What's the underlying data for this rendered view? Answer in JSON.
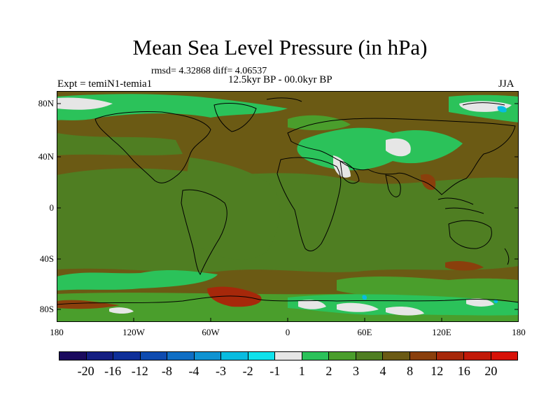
{
  "title": "Mean Sea Level Pressure (in hPa)",
  "stats": "rmsd= 4.32868 diff= 4.06537",
  "period": "12.5kyr BP - 00.0kyr BP",
  "experiment": "Expt = temiN1-temia1",
  "season": "JJA",
  "lat_ticks": [
    "80N",
    "40N",
    "0",
    "40S",
    "80S"
  ],
  "lon_ticks": [
    "180",
    "120W",
    "60W",
    "0",
    "60E",
    "120E",
    "180"
  ],
  "colorbar": {
    "labels": [
      "-20",
      "-16",
      "-12",
      "-8",
      "-4",
      "-3",
      "-2",
      "-1",
      "1",
      "2",
      "3",
      "4",
      "8",
      "12",
      "16",
      "20"
    ],
    "colors": [
      "#1b0a5e",
      "#141e82",
      "#0e2f99",
      "#0e4bb0",
      "#0f6ec4",
      "#0f93d2",
      "#08bce0",
      "#0fe2ec",
      "#e6e6e6",
      "#2bc25a",
      "#4a9e2c",
      "#4f7e22",
      "#6b5a14",
      "#8a3f0c",
      "#a6280a",
      "#c21a08",
      "#d81208"
    ]
  }
}
